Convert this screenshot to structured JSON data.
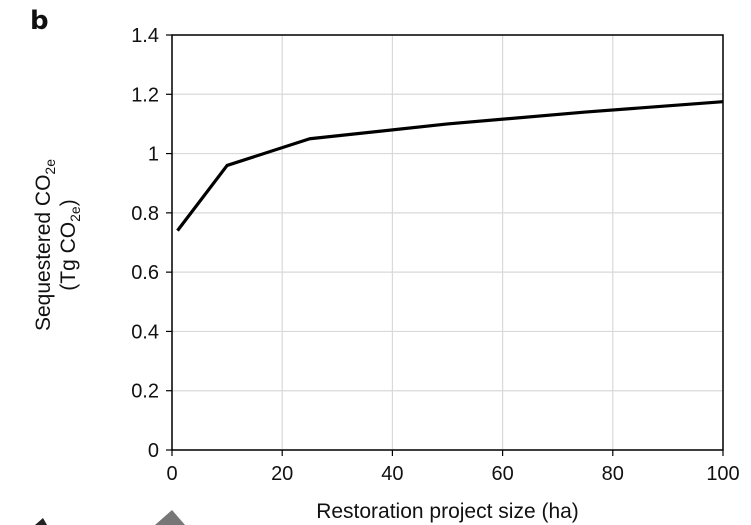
{
  "panel_label": "b",
  "chart_data": {
    "type": "line",
    "xlabel": "Restoration project size (ha)",
    "ylabel": {
      "line1": "Sequestered CO",
      "line1_sub": "2e",
      "line2_open": "(Tg CO",
      "line2_sub": "2e",
      "line2_close": ")"
    },
    "xlim": [
      0,
      100
    ],
    "ylim": [
      0,
      1.4
    ],
    "x_ticks": [
      0,
      20,
      40,
      60,
      80,
      100
    ],
    "x_tick_labels": [
      "0",
      "20",
      "40",
      "60",
      "80",
      "100"
    ],
    "y_ticks": [
      0,
      0.2,
      0.4,
      0.6,
      0.8,
      1.0,
      1.2,
      1.4
    ],
    "y_tick_labels": [
      "0",
      "0.2",
      "0.4",
      "0.6",
      "0.8",
      "1",
      "1.2",
      "1.4"
    ],
    "grid": true,
    "series": [
      {
        "x": [
          1,
          10,
          25,
          50,
          75,
          100
        ],
        "y": [
          0.74,
          0.96,
          1.05,
          1.1,
          1.14,
          1.175
        ]
      }
    ],
    "colors": {
      "line": "#000000",
      "grid": "#d9d9d9",
      "axis": "#000000"
    }
  }
}
